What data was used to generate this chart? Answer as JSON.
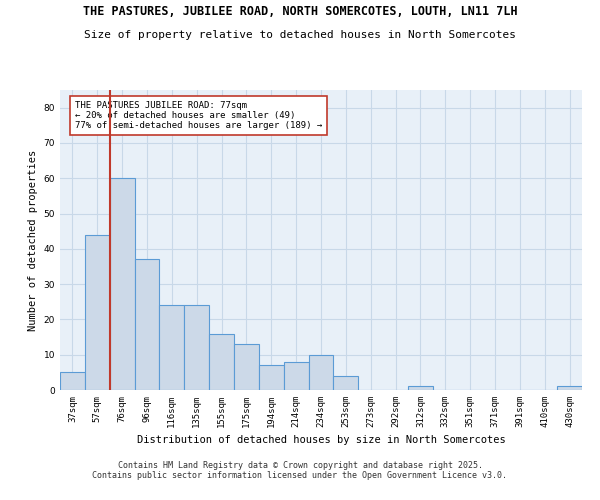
{
  "title": "THE PASTURES, JUBILEE ROAD, NORTH SOMERCOTES, LOUTH, LN11 7LH",
  "subtitle": "Size of property relative to detached houses in North Somercotes",
  "xlabel": "Distribution of detached houses by size in North Somercotes",
  "ylabel": "Number of detached properties",
  "categories": [
    "37sqm",
    "57sqm",
    "76sqm",
    "96sqm",
    "116sqm",
    "135sqm",
    "155sqm",
    "175sqm",
    "194sqm",
    "214sqm",
    "234sqm",
    "253sqm",
    "273sqm",
    "292sqm",
    "312sqm",
    "332sqm",
    "351sqm",
    "371sqm",
    "391sqm",
    "410sqm",
    "430sqm"
  ],
  "values": [
    5,
    44,
    60,
    37,
    24,
    24,
    16,
    13,
    7,
    8,
    10,
    4,
    0,
    0,
    1,
    0,
    0,
    0,
    0,
    0,
    1
  ],
  "bar_color": "#ccd9e8",
  "bar_edge_color": "#5b9bd5",
  "vline_x": 2.0,
  "vline_color": "#c0392b",
  "annotation_text": "THE PASTURES JUBILEE ROAD: 77sqm\n← 20% of detached houses are smaller (49)\n77% of semi-detached houses are larger (189) →",
  "annotation_box_color": "white",
  "annotation_box_edge": "#c0392b",
  "ylim": [
    0,
    85
  ],
  "yticks": [
    0,
    10,
    20,
    30,
    40,
    50,
    60,
    70,
    80
  ],
  "grid_color": "#c8d8e8",
  "background_color": "#e8f0f8",
  "footer_line1": "Contains HM Land Registry data © Crown copyright and database right 2025.",
  "footer_line2": "Contains public sector information licensed under the Open Government Licence v3.0.",
  "title_fontsize": 8.5,
  "subtitle_fontsize": 8,
  "axis_label_fontsize": 7.5,
  "tick_fontsize": 6.5,
  "annotation_fontsize": 6.5,
  "footer_fontsize": 6
}
